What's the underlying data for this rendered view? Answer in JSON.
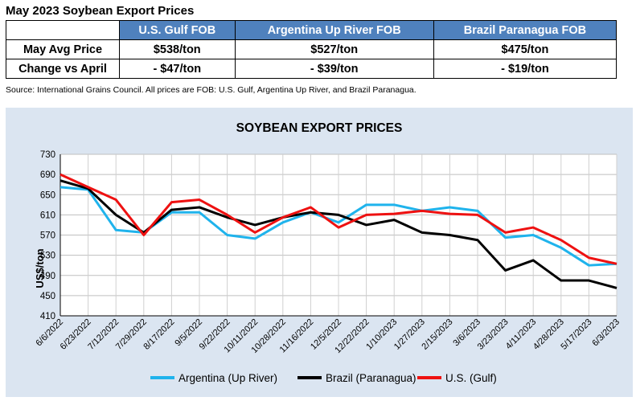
{
  "page_title": "May 2023 Soybean Export Prices",
  "table": {
    "columns": [
      "U.S. Gulf FOB",
      "Argentina Up River FOB",
      "Brazil Paranagua FOB"
    ],
    "rows": [
      {
        "label": "May Avg Price",
        "values": [
          "$538/ton",
          "$527/ton",
          "$475/ton"
        ]
      },
      {
        "label": "Change vs April",
        "values": [
          "- $47/ton",
          "- $39/ton",
          "- $19/ton"
        ]
      }
    ]
  },
  "source": "Source: International Grains Council. All prices are FOB: U.S. Gulf, Argentina Up River, and Brazil Paranagua.",
  "chart_data": {
    "type": "line",
    "title": "SOYBEAN EXPORT PRICES",
    "xlabel": "",
    "ylabel": "US$/ton",
    "ylim": [
      410,
      730
    ],
    "yticks": [
      410,
      450,
      490,
      530,
      570,
      610,
      650,
      690,
      730
    ],
    "x": [
      "6/6/2022",
      "6/23/2022",
      "7/12/2022",
      "7/29/2022",
      "8/17/2022",
      "9/5/2022",
      "9/22/2022",
      "10/11/2022",
      "10/28/2022",
      "11/16/2022",
      "12/5/2022",
      "12/22/2022",
      "1/10/2023",
      "1/27/2023",
      "2/15/2023",
      "3/6/2023",
      "3/23/2023",
      "4/11/2023",
      "4/28/2023",
      "5/17/2023",
      "6/3/2023"
    ],
    "grid": true,
    "legend": "bottom",
    "series": [
      {
        "name": "Argentina (Up River)",
        "color": "#1fb3ec",
        "values": [
          665,
          660,
          580,
          575,
          615,
          615,
          570,
          563,
          595,
          615,
          595,
          630,
          630,
          618,
          625,
          618,
          565,
          570,
          545,
          510,
          513
        ]
      },
      {
        "name": "Brazil (Paranagua)",
        "color": "#000000",
        "values": [
          678,
          662,
          610,
          575,
          620,
          625,
          605,
          590,
          605,
          615,
          610,
          590,
          600,
          575,
          570,
          560,
          500,
          520,
          480,
          480,
          465
        ]
      },
      {
        "name": "U.S. (Gulf)",
        "color": "#ee1111",
        "values": [
          690,
          665,
          640,
          570,
          635,
          640,
          610,
          575,
          605,
          625,
          585,
          610,
          612,
          618,
          612,
          610,
          575,
          585,
          560,
          525,
          513
        ]
      }
    ]
  },
  "chart_colors": {
    "background": "#dbe5f1",
    "table_header": "#4f81bd"
  }
}
